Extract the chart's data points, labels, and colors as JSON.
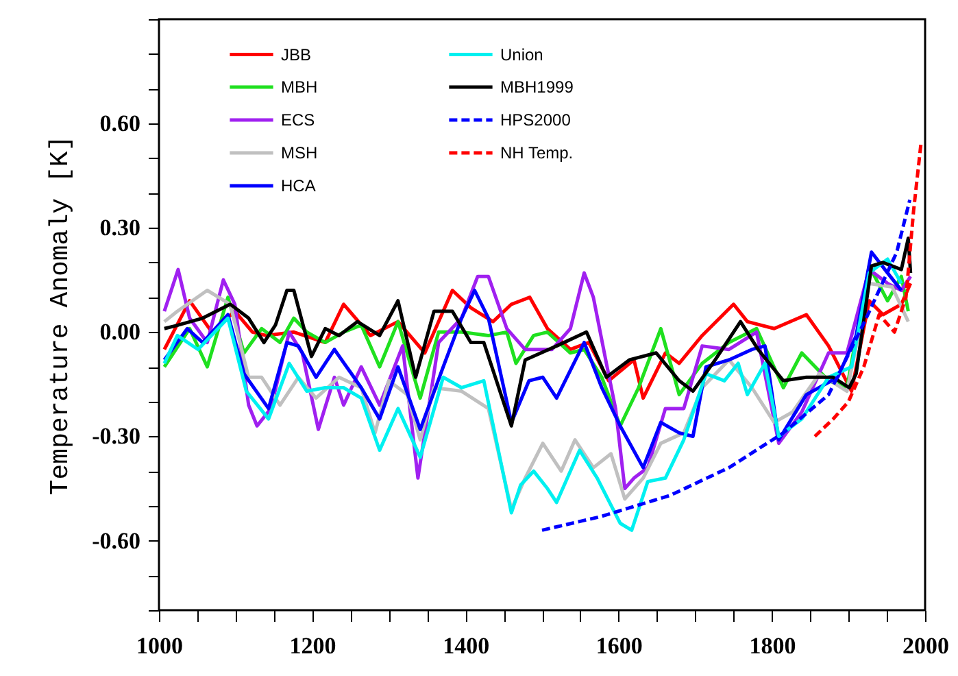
{
  "chart_data": {
    "type": "line",
    "ylabel": "Temperature Anomaly [K]",
    "marker": "none",
    "grid": false,
    "legend": "top",
    "xlim": [
      1000,
      2000
    ],
    "xticks": [
      1000,
      {
        "value": 1050,
        "label": null
      },
      1200,
      {
        "value": 1100,
        "label": null
      },
      {
        "value": 1150,
        "label": null
      },
      {
        "value": 1250,
        "label": null
      },
      {
        "value": 1300,
        "label": null
      },
      {
        "value": 1350,
        "label": null
      },
      1400,
      {
        "value": 1450,
        "label": null
      },
      {
        "value": 1500,
        "label": null
      },
      {
        "value": 1550,
        "label": null
      },
      1600,
      {
        "value": 1650,
        "label": null
      },
      {
        "value": 1700,
        "label": null
      },
      {
        "value": 1750,
        "label": null
      },
      1800,
      {
        "value": 1850,
        "label": null
      },
      {
        "value": 1900,
        "label": null
      },
      {
        "value": 1950,
        "label": null
      },
      2000
    ],
    "ylim": [
      -0.8,
      0.9
    ],
    "yticks": [
      {
        "value": -0.8,
        "label": null
      },
      {
        "value": -0.7,
        "label": null
      },
      {
        "value": -0.6,
        "label": "-0.60"
      },
      {
        "value": -0.5,
        "label": null
      },
      {
        "value": -0.4,
        "label": null
      },
      {
        "value": -0.3,
        "label": "-0.30"
      },
      {
        "value": -0.2,
        "label": null
      },
      {
        "value": -0.1,
        "label": null
      },
      {
        "value": 0,
        "label": "0.00"
      },
      {
        "value": 0.1,
        "label": null
      },
      {
        "value": 0.2,
        "label": null
      },
      {
        "value": 0.3,
        "label": "0.30"
      },
      {
        "value": 0.4,
        "label": null
      },
      {
        "value": 0.5,
        "label": null
      },
      {
        "value": 0.6,
        "label": "0.60"
      },
      {
        "value": 0.7,
        "label": null
      },
      {
        "value": 0.8,
        "label": null
      },
      {
        "value": 0.9,
        "label": null
      }
    ],
    "series": [
      {
        "name": "JBB",
        "color": "#ff0000",
        "line_style": "solid",
        "x": [
          1007,
          1040,
          1069,
          1099,
          1122,
          1140,
          1176,
          1217,
          1241,
          1276,
          1312,
          1347,
          1383,
          1407,
          1436,
          1460,
          1484,
          1507,
          1537,
          1561,
          1587,
          1620,
          1632,
          1661,
          1679,
          1709,
          1750,
          1768,
          1803,
          1845,
          1874,
          1904,
          1927,
          1945,
          1969,
          1981
        ],
        "values": [
          -0.05,
          0.09,
          0,
          0.06,
          0,
          -0.01,
          0,
          -0.03,
          0.08,
          -0.01,
          0.03,
          -0.06,
          0.12,
          0.07,
          0.03,
          0.08,
          0.1,
          0.01,
          -0.05,
          -0.03,
          -0.14,
          -0.08,
          -0.19,
          -0.06,
          -0.09,
          -0.01,
          0.08,
          0.03,
          0.01,
          0.05,
          -0.04,
          -0.17,
          0.09,
          0.05,
          0.08,
          0.14
        ]
      },
      {
        "name": "MBH",
        "color": "#1fe01f",
        "line_style": "solid",
        "x": [
          1007,
          1040,
          1063,
          1090,
          1111,
          1134,
          1158,
          1176,
          1193,
          1217,
          1241,
          1264,
          1288,
          1312,
          1341,
          1365,
          1395,
          1430,
          1454,
          1466,
          1489,
          1507,
          1537,
          1555,
          1578,
          1602,
          1626,
          1655,
          1679,
          1709,
          1744,
          1780,
          1815,
          1839,
          1874,
          1898,
          1927,
          1951,
          1969,
          1978
        ],
        "values": [
          -0.1,
          0.01,
          -0.1,
          0.1,
          -0.06,
          0.01,
          -0.03,
          0.04,
          0,
          -0.03,
          0,
          0.02,
          -0.1,
          0.03,
          -0.19,
          0,
          0,
          -0.01,
          0,
          -0.09,
          -0.01,
          0,
          -0.06,
          -0.05,
          -0.13,
          -0.27,
          -0.16,
          0.01,
          -0.18,
          -0.09,
          -0.03,
          0.01,
          -0.16,
          -0.06,
          -0.14,
          -0.16,
          0.19,
          0.09,
          0.16,
          0.06
        ]
      },
      {
        "name": "ECS",
        "color": "#a020f0",
        "line_style": "solid",
        "x": [
          1007,
          1025,
          1040,
          1063,
          1084,
          1099,
          1117,
          1128,
          1146,
          1170,
          1187,
          1208,
          1229,
          1241,
          1264,
          1288,
          1318,
          1338,
          1365,
          1395,
          1416,
          1430,
          1454,
          1478,
          1513,
          1537,
          1555,
          1567,
          1584,
          1596,
          1608,
          1620,
          1638,
          1661,
          1685,
          1709,
          1744,
          1780,
          1809,
          1839,
          1874,
          1898,
          1927,
          1951,
          1969,
          1981
        ],
        "values": [
          0.06,
          0.18,
          0.04,
          -0.03,
          0.15,
          0.08,
          -0.21,
          -0.27,
          -0.22,
          0,
          -0.06,
          -0.28,
          -0.13,
          -0.21,
          -0.1,
          -0.21,
          -0.04,
          -0.42,
          -0.03,
          0.04,
          0.16,
          0.16,
          0.01,
          -0.05,
          -0.05,
          0.01,
          0.17,
          0.1,
          -0.09,
          -0.22,
          -0.45,
          -0.42,
          -0.39,
          -0.22,
          -0.22,
          -0.04,
          -0.05,
          0,
          -0.32,
          -0.23,
          -0.06,
          -0.06,
          0.18,
          0.14,
          0.12,
          0.16
        ]
      },
      {
        "name": "MSH",
        "color": "#c0c0c0",
        "line_style": "solid",
        "x": [
          1007,
          1024,
          1063,
          1093,
          1117,
          1134,
          1158,
          1182,
          1205,
          1235,
          1264,
          1282,
          1300,
          1324,
          1341,
          1359,
          1395,
          1430,
          1460,
          1478,
          1501,
          1525,
          1543,
          1567,
          1590,
          1608,
          1632,
          1655,
          1685,
          1709,
          1744,
          1774,
          1803,
          1827,
          1862,
          1898,
          1927,
          1957,
          1978
        ],
        "values": [
          0.03,
          0.06,
          0.12,
          0.08,
          -0.13,
          -0.13,
          -0.21,
          -0.13,
          -0.19,
          -0.13,
          -0.16,
          -0.29,
          -0.14,
          -0.18,
          -0.31,
          -0.16,
          -0.17,
          -0.22,
          -0.51,
          -0.42,
          -0.32,
          -0.4,
          -0.31,
          -0.39,
          -0.35,
          -0.48,
          -0.42,
          -0.32,
          -0.29,
          -0.16,
          -0.08,
          -0.16,
          -0.26,
          -0.23,
          -0.12,
          -0.17,
          0.14,
          0.13,
          0.03
        ]
      },
      {
        "name": "HCA",
        "color": "#0000ff",
        "line_style": "solid",
        "x": [
          1007,
          1037,
          1057,
          1090,
          1111,
          1143,
          1167,
          1182,
          1205,
          1229,
          1264,
          1288,
          1312,
          1341,
          1371,
          1395,
          1412,
          1430,
          1460,
          1483,
          1501,
          1519,
          1555,
          1578,
          1602,
          1632,
          1655,
          1679,
          1697,
          1714,
          1744,
          1774,
          1791,
          1809,
          1845,
          1886,
          1910,
          1930,
          1951,
          1969
        ],
        "values": [
          -0.08,
          0.01,
          -0.03,
          0.05,
          -0.12,
          -0.22,
          -0.03,
          -0.04,
          -0.13,
          -0.05,
          -0.16,
          -0.25,
          -0.1,
          -0.28,
          -0.1,
          0.04,
          0.12,
          0.04,
          -0.26,
          -0.14,
          -0.13,
          -0.19,
          -0.03,
          -0.16,
          -0.27,
          -0.39,
          -0.26,
          -0.29,
          -0.3,
          -0.1,
          -0.08,
          -0.05,
          -0.04,
          -0.31,
          -0.18,
          -0.13,
          -0.01,
          0.23,
          0.17,
          0.12
        ]
      },
      {
        "name": "Union",
        "color": "#00f0f0",
        "line_style": "solid",
        "x": [
          1007,
          1024,
          1051,
          1090,
          1114,
          1143,
          1170,
          1193,
          1217,
          1241,
          1264,
          1288,
          1312,
          1341,
          1371,
          1395,
          1424,
          1460,
          1472,
          1489,
          1507,
          1519,
          1549,
          1572,
          1602,
          1617,
          1638,
          1661,
          1685,
          1714,
          1738,
          1756,
          1768,
          1791,
          1809,
          1839,
          1874,
          1904,
          1927,
          1951,
          1969
        ],
        "values": [
          -0.09,
          -0.01,
          -0.05,
          0.04,
          -0.17,
          -0.25,
          -0.09,
          -0.17,
          -0.16,
          -0.16,
          -0.19,
          -0.34,
          -0.22,
          -0.36,
          -0.13,
          -0.16,
          -0.14,
          -0.52,
          -0.44,
          -0.4,
          -0.45,
          -0.49,
          -0.34,
          -0.42,
          -0.55,
          -0.57,
          -0.43,
          -0.42,
          -0.31,
          -0.12,
          -0.14,
          -0.09,
          -0.18,
          -0.09,
          -0.3,
          -0.25,
          -0.13,
          -0.1,
          0.17,
          0.21,
          0.14
        ]
      },
      {
        "name": "MBH1999",
        "color": "#000000",
        "line_style": "solid",
        "x": [
          1007,
          1025,
          1057,
          1093,
          1117,
          1137,
          1152,
          1167,
          1176,
          1199,
          1217,
          1235,
          1259,
          1288,
          1312,
          1335,
          1359,
          1383,
          1407,
          1424,
          1460,
          1478,
          1519,
          1558,
          1584,
          1614,
          1649,
          1679,
          1697,
          1726,
          1759,
          1782,
          1815,
          1845,
          1880,
          1901,
          1910,
          1930,
          1945,
          1969,
          1978,
          1981
        ],
        "values": [
          0.01,
          0.02,
          0.04,
          0.08,
          0.04,
          -0.03,
          0.02,
          0.12,
          0.12,
          -0.07,
          0.01,
          -0.01,
          0.03,
          -0.01,
          0.09,
          -0.13,
          0.06,
          0.06,
          -0.03,
          -0.03,
          -0.27,
          -0.08,
          -0.04,
          0,
          -0.13,
          -0.08,
          -0.06,
          -0.14,
          -0.17,
          -0.08,
          0.03,
          -0.05,
          -0.14,
          -0.13,
          -0.13,
          -0.16,
          -0.12,
          0.19,
          0.2,
          0.18,
          0.27,
          0.17
        ]
      },
      {
        "name": "HPS2000",
        "color": "#0000ff",
        "line_style": "dashed",
        "x": [
          1500,
          1578,
          1667,
          1744,
          1815,
          1874,
          1921,
          1963,
          1980
        ],
        "values": [
          -0.57,
          -0.53,
          -0.47,
          -0.39,
          -0.29,
          -0.18,
          0.03,
          0.23,
          0.38
        ]
      },
      {
        "name": "NH Temp.",
        "color": "#ff0000",
        "line_style": "dashed",
        "x": [
          1856,
          1880,
          1900,
          1920,
          1940,
          1960,
          1975,
          1985,
          1990,
          1995
        ],
        "values": [
          -0.3,
          -0.25,
          -0.2,
          -0.1,
          0.05,
          0,
          0.1,
          0.35,
          0.45,
          0.55
        ]
      }
    ]
  }
}
